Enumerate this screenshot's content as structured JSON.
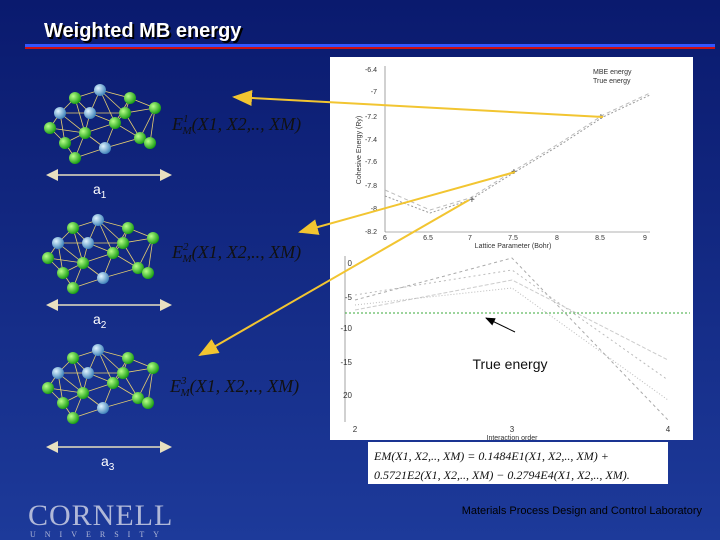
{
  "header": {
    "title": "Weighted MB energy"
  },
  "clusters": [
    {
      "label": {
        "base": "a",
        "sub": "1"
      },
      "equation": {
        "symbol": "E",
        "sup": "1",
        "sub": "M",
        "args": "(X1, X2,.., XM)"
      }
    },
    {
      "label": {
        "base": "a",
        "sub": "2"
      },
      "equation": {
        "symbol": "E",
        "sup": "2",
        "sub": "M",
        "args": "(X1, X2,.., XM)"
      }
    },
    {
      "label": {
        "base": "a",
        "sub": "3"
      },
      "equation": {
        "symbol": "E",
        "sup": "3",
        "sub": "M",
        "args": "(X1, X2,.., XM)"
      }
    }
  ],
  "top_plot": {
    "y_label": "Cohesive Energy (Ry)",
    "x_label": "Lattice Parameter (Bohr)",
    "yticks": [
      "-6.4",
      "-7",
      "-7.2",
      "-7.4",
      "-7.6",
      "-7.8",
      "-8",
      "-8.2"
    ],
    "xticks": [
      "6",
      "6.5",
      "7",
      "7.5",
      "8",
      "8.5",
      "9"
    ],
    "legend": [
      "MBE energy",
      "True energy"
    ]
  },
  "bottom_plot": {
    "x_label": "Interaction order",
    "yticks": [
      "0",
      "-5",
      "-10",
      "-15",
      "20"
    ],
    "xticks": [
      "2",
      "3",
      "4"
    ],
    "annotation": "True energy"
  },
  "formula": {
    "line1": "EM(X1, X2,.., XM) = 0.1484E1(X1, X2,.., XM) +",
    "line2": "0.5721E2(X1, X2,.., XM) − 0.2794E4(X1, X2,.., XM)."
  },
  "footer": {
    "logo": "CORNELL",
    "logo_sub": "UNIVERSITY",
    "lab": "Materials Process Design and Control Laboratory"
  }
}
